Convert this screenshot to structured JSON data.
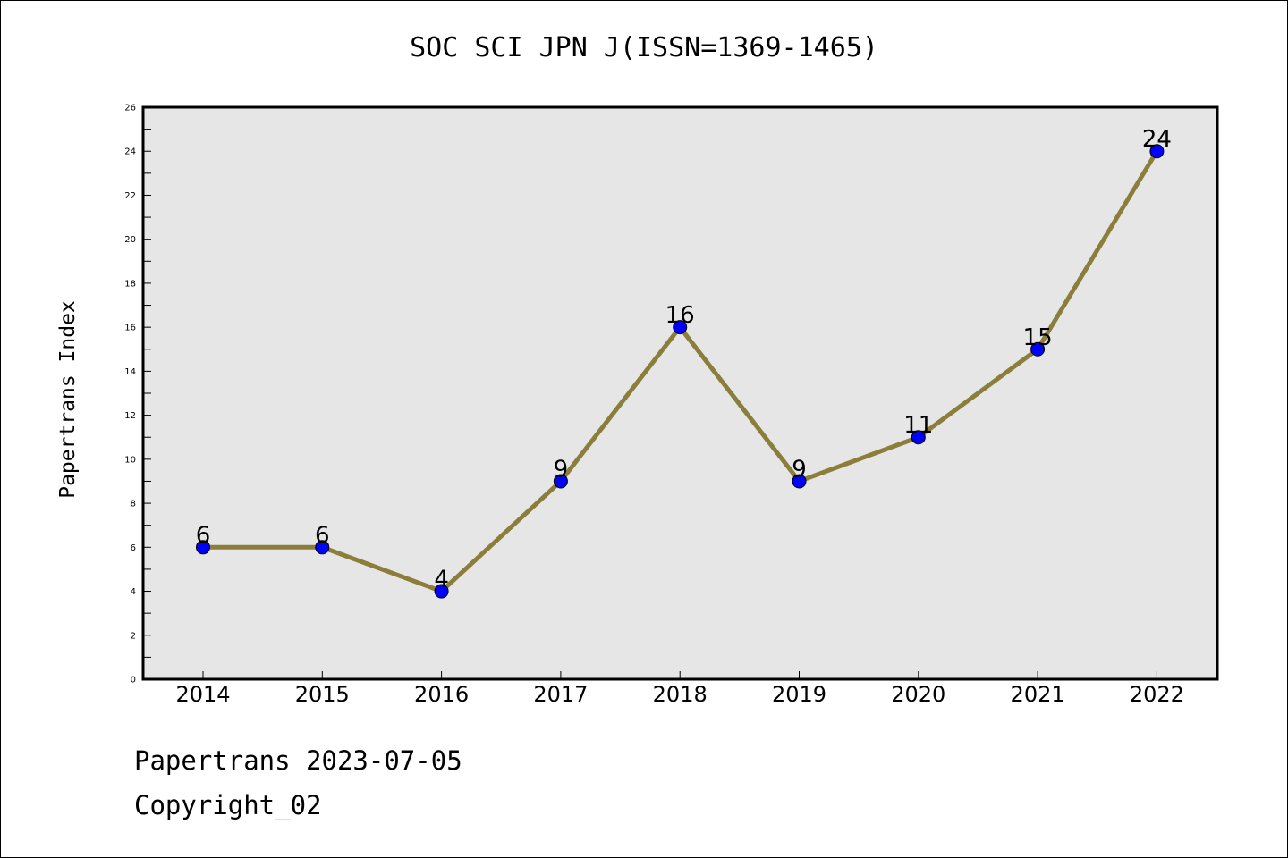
{
  "title": "SOC SCI JPN J(ISSN=1369-1465)",
  "footer": {
    "date_line": "Papertrans 2023-07-05",
    "copyright": "Copyright_02"
  },
  "colors": {
    "plot_background": "#e6e6e6",
    "line": "#8b7d3a",
    "marker": "#0000ff"
  },
  "chart_data": {
    "type": "line",
    "title": "SOC SCI JPN J(ISSN=1369-1465)",
    "xlabel": "",
    "ylabel": "Papertrans Index",
    "categories": [
      "2014",
      "2015",
      "2016",
      "2017",
      "2018",
      "2019",
      "2020",
      "2021",
      "2022"
    ],
    "series": [
      {
        "values": [
          6,
          6,
          4,
          9,
          16,
          9,
          11,
          15,
          24
        ]
      }
    ],
    "ylim": [
      0,
      26
    ],
    "yticks": [
      0,
      2,
      4,
      6,
      8,
      10,
      12,
      14,
      16,
      18,
      20,
      22,
      24,
      26
    ],
    "grid": false,
    "data_labels": true
  }
}
